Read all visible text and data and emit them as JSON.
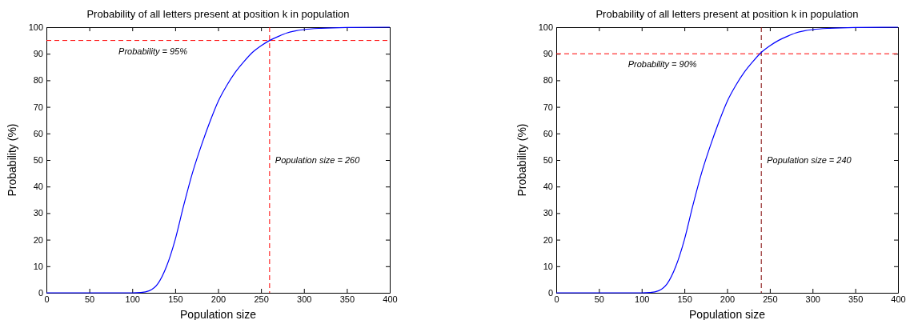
{
  "chart_data": [
    {
      "type": "line",
      "title": "Probability of all letters present at position k in population",
      "xlabel": "Population size",
      "ylabel": "Probability (%)",
      "x": [
        0,
        100,
        110,
        120,
        130,
        140,
        150,
        160,
        170,
        180,
        190,
        200,
        210,
        220,
        230,
        240,
        250,
        260,
        270,
        280,
        290,
        300,
        320,
        350,
        400
      ],
      "series": [
        {
          "color": "#0000ff",
          "values": [
            0,
            0,
            0.1,
            0.8,
            3.5,
            10,
            20,
            33,
            45,
            55,
            64,
            72,
            78,
            83,
            87,
            90.5,
            93,
            95,
            96.5,
            97.8,
            98.6,
            99.1,
            99.6,
            99.9,
            100
          ]
        }
      ],
      "xlim": [
        0,
        400
      ],
      "xticks": [
        0,
        50,
        100,
        150,
        200,
        250,
        300,
        350,
        400
      ],
      "ylim": [
        0,
        100
      ],
      "yticks": [
        0,
        10,
        20,
        30,
        40,
        50,
        60,
        70,
        80,
        90,
        100
      ],
      "ref_lines": [
        {
          "axis": "y",
          "value": 95,
          "label": "Probability = 95%",
          "color": "#ff0000",
          "line_style": "dashed"
        },
        {
          "axis": "x",
          "value": 260,
          "label": "Population size = 260",
          "color": "#ff0000",
          "line_style": "dashed"
        }
      ]
    },
    {
      "type": "line",
      "title": "Probability of all letters present at position k in population",
      "xlabel": "Population size",
      "ylabel": "Probability (%)",
      "x": [
        0,
        100,
        110,
        120,
        130,
        140,
        150,
        160,
        170,
        180,
        190,
        200,
        210,
        220,
        230,
        240,
        250,
        260,
        270,
        280,
        290,
        300,
        320,
        350,
        400
      ],
      "series": [
        {
          "color": "#0000ff",
          "values": [
            0,
            0,
            0.1,
            0.8,
            3.5,
            10,
            20,
            33,
            45,
            55,
            64,
            72,
            78,
            83,
            87,
            90.5,
            93,
            95,
            96.5,
            97.8,
            98.6,
            99.1,
            99.6,
            99.9,
            100
          ]
        }
      ],
      "xlim": [
        0,
        400
      ],
      "xticks": [
        0,
        50,
        100,
        150,
        200,
        250,
        300,
        350,
        400
      ],
      "ylim": [
        0,
        100
      ],
      "yticks": [
        0,
        10,
        20,
        30,
        40,
        50,
        60,
        70,
        80,
        90,
        100
      ],
      "ref_lines": [
        {
          "axis": "y",
          "value": 90,
          "label": "Probability = 90%",
          "color": "#ff0000",
          "line_style": "dashed"
        },
        {
          "axis": "x",
          "value": 240,
          "label": "Population size = 240",
          "color": "#800000",
          "line_style": "dashed"
        }
      ]
    }
  ]
}
